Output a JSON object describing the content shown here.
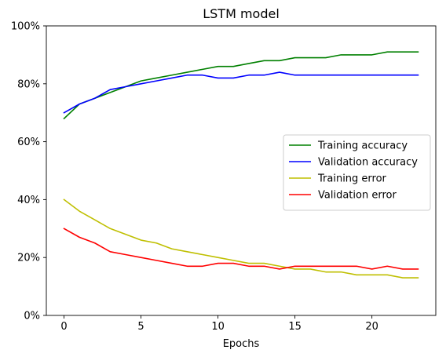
{
  "chart_data": {
    "type": "line",
    "title": "LSTM model",
    "xlabel": "Epochs",
    "ylabel": "",
    "xlim": [
      -1.15,
      24.15
    ],
    "ylim": [
      0,
      100
    ],
    "x_ticks": [
      0,
      5,
      10,
      15,
      20
    ],
    "y_ticks": [
      0,
      20,
      40,
      60,
      80,
      100
    ],
    "y_tick_format": "percent",
    "grid": false,
    "legend_position": "center-right",
    "x": [
      0,
      1,
      2,
      3,
      4,
      5,
      6,
      7,
      8,
      9,
      10,
      11,
      12,
      13,
      14,
      15,
      16,
      17,
      18,
      19,
      20,
      21,
      22,
      23
    ],
    "series": [
      {
        "name": "Training accuracy",
        "color": "#008000",
        "values": [
          68,
          73,
          75,
          77,
          79,
          81,
          82,
          83,
          84,
          85,
          86,
          86,
          87,
          88,
          88,
          89,
          89,
          89,
          90,
          90,
          90,
          91,
          91,
          91
        ]
      },
      {
        "name": "Validation accuracy",
        "color": "#0000ff",
        "values": [
          70,
          73,
          75,
          78,
          79,
          80,
          81,
          82,
          83,
          83,
          82,
          82,
          83,
          83,
          84,
          83,
          83,
          83,
          83,
          83,
          83,
          83,
          83,
          83
        ]
      },
      {
        "name": "Training error",
        "color": "#bfbf00",
        "values": [
          40,
          36,
          33,
          30,
          28,
          26,
          25,
          23,
          22,
          21,
          20,
          19,
          18,
          18,
          17,
          16,
          16,
          15,
          15,
          14,
          14,
          14,
          13,
          13
        ]
      },
      {
        "name": "Validation error",
        "color": "#ff0000",
        "values": [
          30,
          27,
          25,
          22,
          21,
          20,
          19,
          18,
          17,
          17,
          18,
          18,
          17,
          17,
          16,
          17,
          17,
          17,
          17,
          17,
          16,
          17,
          16,
          16
        ]
      }
    ]
  }
}
